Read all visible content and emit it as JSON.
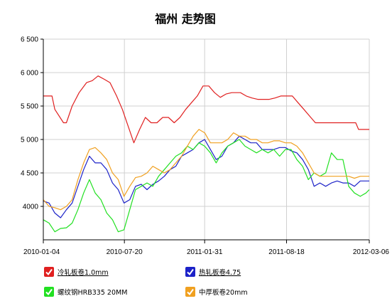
{
  "chart_data": {
    "type": "line",
    "title": "福州 走势图",
    "xlabel": "",
    "ylabel": "",
    "ylim": [
      3500,
      6500
    ],
    "yticks": [
      4000,
      4500,
      5000,
      5500,
      6000,
      6500
    ],
    "ytick_labels": [
      "4000",
      "4 500",
      "5 000",
      "5 500",
      "6 000",
      "6 500"
    ],
    "xlim": [
      "2010-01-04",
      "2012-03-06"
    ],
    "xticks": [
      "2010-01-04",
      "2010-07-20",
      "2011-01-31",
      "2011-08-18",
      "2012-03-06"
    ],
    "grid": true,
    "legend_position": "bottom",
    "series": [
      {
        "name": "冷轧板卷1.0mm",
        "color": "#e02020",
        "underline": true,
        "points": [
          [
            "2010-01-04",
            5650
          ],
          [
            "2010-01-25",
            5650
          ],
          [
            "2010-02-01",
            5450
          ],
          [
            "2010-02-22",
            5250
          ],
          [
            "2010-03-01",
            5250
          ],
          [
            "2010-03-15",
            5500
          ],
          [
            "2010-04-01",
            5700
          ],
          [
            "2010-04-19",
            5850
          ],
          [
            "2010-05-03",
            5880
          ],
          [
            "2010-05-17",
            5950
          ],
          [
            "2010-06-01",
            5900
          ],
          [
            "2010-06-15",
            5850
          ],
          [
            "2010-07-01",
            5650
          ],
          [
            "2010-07-15",
            5450
          ],
          [
            "2010-07-29",
            5200
          ],
          [
            "2010-08-12",
            4950
          ],
          [
            "2010-08-26",
            5150
          ],
          [
            "2010-09-09",
            5330
          ],
          [
            "2010-09-23",
            5250
          ],
          [
            "2010-10-07",
            5250
          ],
          [
            "2010-10-21",
            5330
          ],
          [
            "2010-11-04",
            5330
          ],
          [
            "2010-11-18",
            5250
          ],
          [
            "2010-12-02",
            5330
          ],
          [
            "2010-12-16",
            5450
          ],
          [
            "2010-12-30",
            5550
          ],
          [
            "2011-01-13",
            5650
          ],
          [
            "2011-01-27",
            5800
          ],
          [
            "2011-02-10",
            5800
          ],
          [
            "2011-02-24",
            5700
          ],
          [
            "2011-03-10",
            5630
          ],
          [
            "2011-03-24",
            5680
          ],
          [
            "2011-04-07",
            5700
          ],
          [
            "2011-04-28",
            5700
          ],
          [
            "2011-05-12",
            5650
          ],
          [
            "2011-05-26",
            5620
          ],
          [
            "2011-06-09",
            5600
          ],
          [
            "2011-07-07",
            5600
          ],
          [
            "2011-07-21",
            5620
          ],
          [
            "2011-08-04",
            5650
          ],
          [
            "2011-09-01",
            5650
          ],
          [
            "2011-09-15",
            5550
          ],
          [
            "2011-09-29",
            5450
          ],
          [
            "2011-10-13",
            5350
          ],
          [
            "2011-10-27",
            5250
          ],
          [
            "2011-11-24",
            5250
          ],
          [
            "2011-12-22",
            5250
          ],
          [
            "2012-01-19",
            5250
          ],
          [
            "2012-02-02",
            5250
          ],
          [
            "2012-02-09",
            5150
          ],
          [
            "2012-03-06",
            5150
          ]
        ]
      },
      {
        "name": "热轧板卷4.75",
        "color": "#1c22c8",
        "underline": true,
        "points": [
          [
            "2010-01-04",
            4080
          ],
          [
            "2010-01-18",
            4050
          ],
          [
            "2010-02-01",
            3900
          ],
          [
            "2010-02-15",
            3830
          ],
          [
            "2010-03-01",
            3950
          ],
          [
            "2010-03-15",
            4050
          ],
          [
            "2010-03-29",
            4300
          ],
          [
            "2010-04-12",
            4550
          ],
          [
            "2010-04-26",
            4750
          ],
          [
            "2010-05-10",
            4650
          ],
          [
            "2010-05-24",
            4650
          ],
          [
            "2010-06-07",
            4550
          ],
          [
            "2010-06-21",
            4350
          ],
          [
            "2010-07-05",
            4250
          ],
          [
            "2010-07-19",
            4050
          ],
          [
            "2010-08-02",
            4100
          ],
          [
            "2010-08-16",
            4300
          ],
          [
            "2010-08-30",
            4330
          ],
          [
            "2010-09-13",
            4250
          ],
          [
            "2010-09-27",
            4330
          ],
          [
            "2010-10-11",
            4380
          ],
          [
            "2010-10-25",
            4450
          ],
          [
            "2010-11-08",
            4550
          ],
          [
            "2010-11-22",
            4600
          ],
          [
            "2010-12-06",
            4750
          ],
          [
            "2010-12-20",
            4800
          ],
          [
            "2011-01-03",
            4850
          ],
          [
            "2011-01-17",
            4950
          ],
          [
            "2011-01-31",
            5000
          ],
          [
            "2011-02-14",
            4850
          ],
          [
            "2011-02-28",
            4700
          ],
          [
            "2011-03-14",
            4750
          ],
          [
            "2011-03-28",
            4900
          ],
          [
            "2011-04-11",
            4950
          ],
          [
            "2011-04-25",
            5050
          ],
          [
            "2011-05-09",
            5000
          ],
          [
            "2011-05-23",
            4950
          ],
          [
            "2011-06-06",
            4950
          ],
          [
            "2011-06-20",
            4850
          ],
          [
            "2011-07-04",
            4850
          ],
          [
            "2011-07-18",
            4850
          ],
          [
            "2011-08-01",
            4880
          ],
          [
            "2011-08-15",
            4880
          ],
          [
            "2011-08-29",
            4830
          ],
          [
            "2011-09-12",
            4800
          ],
          [
            "2011-09-26",
            4700
          ],
          [
            "2011-10-10",
            4550
          ],
          [
            "2011-10-24",
            4300
          ],
          [
            "2011-11-07",
            4350
          ],
          [
            "2011-11-21",
            4300
          ],
          [
            "2011-12-05",
            4350
          ],
          [
            "2011-12-19",
            4380
          ],
          [
            "2012-01-02",
            4350
          ],
          [
            "2012-01-16",
            4350
          ],
          [
            "2012-01-30",
            4300
          ],
          [
            "2012-02-13",
            4380
          ],
          [
            "2012-03-06",
            4380
          ]
        ]
      },
      {
        "name": "螺纹钢HRB335 20MM",
        "color": "#22e022",
        "underline": false,
        "points": [
          [
            "2010-01-04",
            3800
          ],
          [
            "2010-01-18",
            3750
          ],
          [
            "2010-02-01",
            3620
          ],
          [
            "2010-02-15",
            3670
          ],
          [
            "2010-03-01",
            3680
          ],
          [
            "2010-03-15",
            3750
          ],
          [
            "2010-03-29",
            3950
          ],
          [
            "2010-04-12",
            4200
          ],
          [
            "2010-04-26",
            4400
          ],
          [
            "2010-05-10",
            4200
          ],
          [
            "2010-05-24",
            4100
          ],
          [
            "2010-06-07",
            3900
          ],
          [
            "2010-06-21",
            3800
          ],
          [
            "2010-07-05",
            3620
          ],
          [
            "2010-07-19",
            3650
          ],
          [
            "2010-08-02",
            3950
          ],
          [
            "2010-08-16",
            4250
          ],
          [
            "2010-08-30",
            4300
          ],
          [
            "2010-09-13",
            4350
          ],
          [
            "2010-09-27",
            4300
          ],
          [
            "2010-10-11",
            4450
          ],
          [
            "2010-10-25",
            4550
          ],
          [
            "2010-11-08",
            4650
          ],
          [
            "2010-11-22",
            4750
          ],
          [
            "2010-12-06",
            4800
          ],
          [
            "2010-12-20",
            4900
          ],
          [
            "2011-01-03",
            4850
          ],
          [
            "2011-01-17",
            4950
          ],
          [
            "2011-01-31",
            4900
          ],
          [
            "2011-02-14",
            4800
          ],
          [
            "2011-02-28",
            4650
          ],
          [
            "2011-03-14",
            4800
          ],
          [
            "2011-03-28",
            4900
          ],
          [
            "2011-04-11",
            4950
          ],
          [
            "2011-04-25",
            5000
          ],
          [
            "2011-05-09",
            4900
          ],
          [
            "2011-05-23",
            4850
          ],
          [
            "2011-06-06",
            4800
          ],
          [
            "2011-06-20",
            4850
          ],
          [
            "2011-07-04",
            4800
          ],
          [
            "2011-07-18",
            4850
          ],
          [
            "2011-08-01",
            4750
          ],
          [
            "2011-08-15",
            4850
          ],
          [
            "2011-08-29",
            4850
          ],
          [
            "2011-09-12",
            4700
          ],
          [
            "2011-09-26",
            4600
          ],
          [
            "2011-10-10",
            4400
          ],
          [
            "2011-10-24",
            4500
          ],
          [
            "2011-11-07",
            4450
          ],
          [
            "2011-11-21",
            4500
          ],
          [
            "2011-12-05",
            4800
          ],
          [
            "2011-12-19",
            4700
          ],
          [
            "2012-01-02",
            4700
          ],
          [
            "2012-01-16",
            4300
          ],
          [
            "2012-01-30",
            4200
          ],
          [
            "2012-02-13",
            4150
          ],
          [
            "2012-02-27",
            4200
          ],
          [
            "2012-03-06",
            4250
          ]
        ]
      },
      {
        "name": "中厚板卷20mm",
        "color": "#f0a020",
        "underline": false,
        "points": [
          [
            "2010-01-04",
            4100
          ],
          [
            "2010-01-18",
            4000
          ],
          [
            "2010-02-01",
            3980
          ],
          [
            "2010-02-15",
            3950
          ],
          [
            "2010-03-01",
            4000
          ],
          [
            "2010-03-15",
            4100
          ],
          [
            "2010-03-29",
            4400
          ],
          [
            "2010-04-12",
            4650
          ],
          [
            "2010-04-26",
            4850
          ],
          [
            "2010-05-10",
            4880
          ],
          [
            "2010-05-24",
            4800
          ],
          [
            "2010-06-07",
            4700
          ],
          [
            "2010-06-21",
            4500
          ],
          [
            "2010-07-05",
            4400
          ],
          [
            "2010-07-19",
            4150
          ],
          [
            "2010-08-02",
            4300
          ],
          [
            "2010-08-16",
            4430
          ],
          [
            "2010-08-30",
            4450
          ],
          [
            "2010-09-13",
            4500
          ],
          [
            "2010-09-27",
            4600
          ],
          [
            "2010-10-11",
            4550
          ],
          [
            "2010-10-25",
            4500
          ],
          [
            "2010-11-08",
            4550
          ],
          [
            "2010-11-22",
            4650
          ],
          [
            "2010-12-06",
            4750
          ],
          [
            "2010-12-20",
            4900
          ],
          [
            "2011-01-03",
            5050
          ],
          [
            "2011-01-17",
            5150
          ],
          [
            "2011-01-31",
            5100
          ],
          [
            "2011-02-14",
            4950
          ],
          [
            "2011-02-28",
            4950
          ],
          [
            "2011-03-14",
            4950
          ],
          [
            "2011-03-28",
            5000
          ],
          [
            "2011-04-11",
            5100
          ],
          [
            "2011-04-25",
            5050
          ],
          [
            "2011-05-09",
            5050
          ],
          [
            "2011-05-23",
            5000
          ],
          [
            "2011-06-06",
            5000
          ],
          [
            "2011-06-20",
            4950
          ],
          [
            "2011-07-04",
            4950
          ],
          [
            "2011-07-18",
            4980
          ],
          [
            "2011-08-01",
            4980
          ],
          [
            "2011-08-15",
            4950
          ],
          [
            "2011-08-29",
            4950
          ],
          [
            "2011-09-12",
            4900
          ],
          [
            "2011-09-26",
            4800
          ],
          [
            "2011-10-10",
            4650
          ],
          [
            "2011-10-24",
            4500
          ],
          [
            "2011-11-07",
            4450
          ],
          [
            "2011-11-21",
            4450
          ],
          [
            "2011-12-05",
            4450
          ],
          [
            "2011-12-19",
            4450
          ],
          [
            "2012-01-02",
            4450
          ],
          [
            "2012-01-16",
            4450
          ],
          [
            "2012-01-30",
            4420
          ],
          [
            "2012-02-13",
            4450
          ],
          [
            "2012-03-06",
            4450
          ]
        ]
      }
    ]
  }
}
